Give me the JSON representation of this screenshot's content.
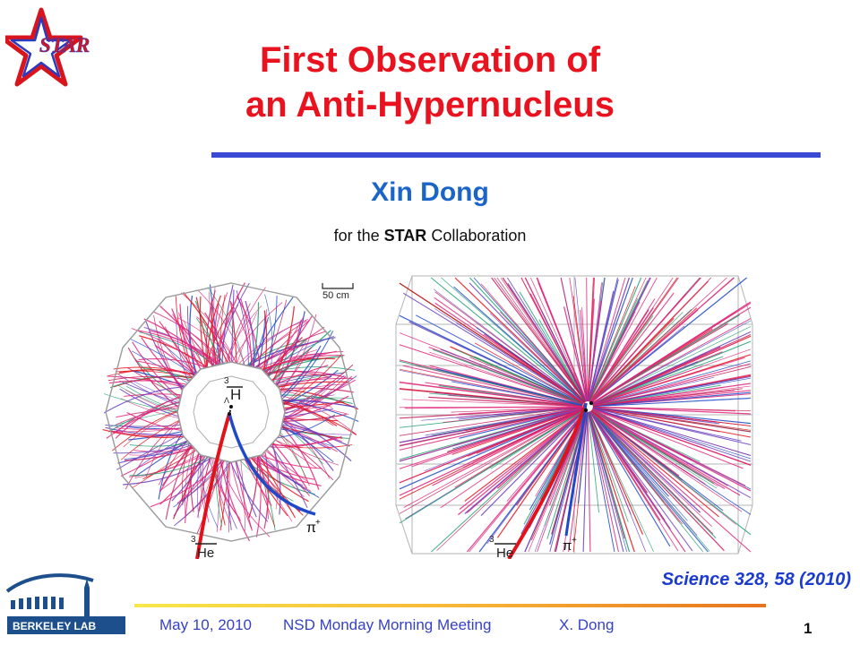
{
  "slide": {
    "title_line1": "First Observation of",
    "title_line2": "an Anti-Hypernucleus",
    "author": "Xin Dong",
    "affiliation_prefix": "for the ",
    "affiliation_strong": "STAR",
    "affiliation_suffix": " Collaboration",
    "citation": "Science 328, 58 (2010)"
  },
  "logos": {
    "star_text": "STAR",
    "lab_text": "BERKELEY LAB"
  },
  "figure": {
    "left_scale_label": "50 cm",
    "left_label_h_mass": "3",
    "left_label_h_sub": "Λ",
    "left_label_h": "H",
    "left_label_pi": "π",
    "left_label_pi_charge": "+",
    "left_label_he_mass": "3",
    "left_label_he": "He",
    "right_label_he_mass": "3",
    "right_label_he": "He",
    "right_label_pi": "π",
    "right_label_pi_charge": "+"
  },
  "footer": {
    "date": "May 10, 2010",
    "meeting": "NSD Monday Morning Meeting",
    "author": "X. Dong",
    "page_number": "1"
  },
  "colors": {
    "title": "#e8131f",
    "author": "#1b64c8",
    "rule": "#3b4ad4",
    "footer_text": "#3642c6",
    "track_magenta": "#e0247a",
    "track_blue": "#1f49c8",
    "track_red": "#e3121a"
  }
}
